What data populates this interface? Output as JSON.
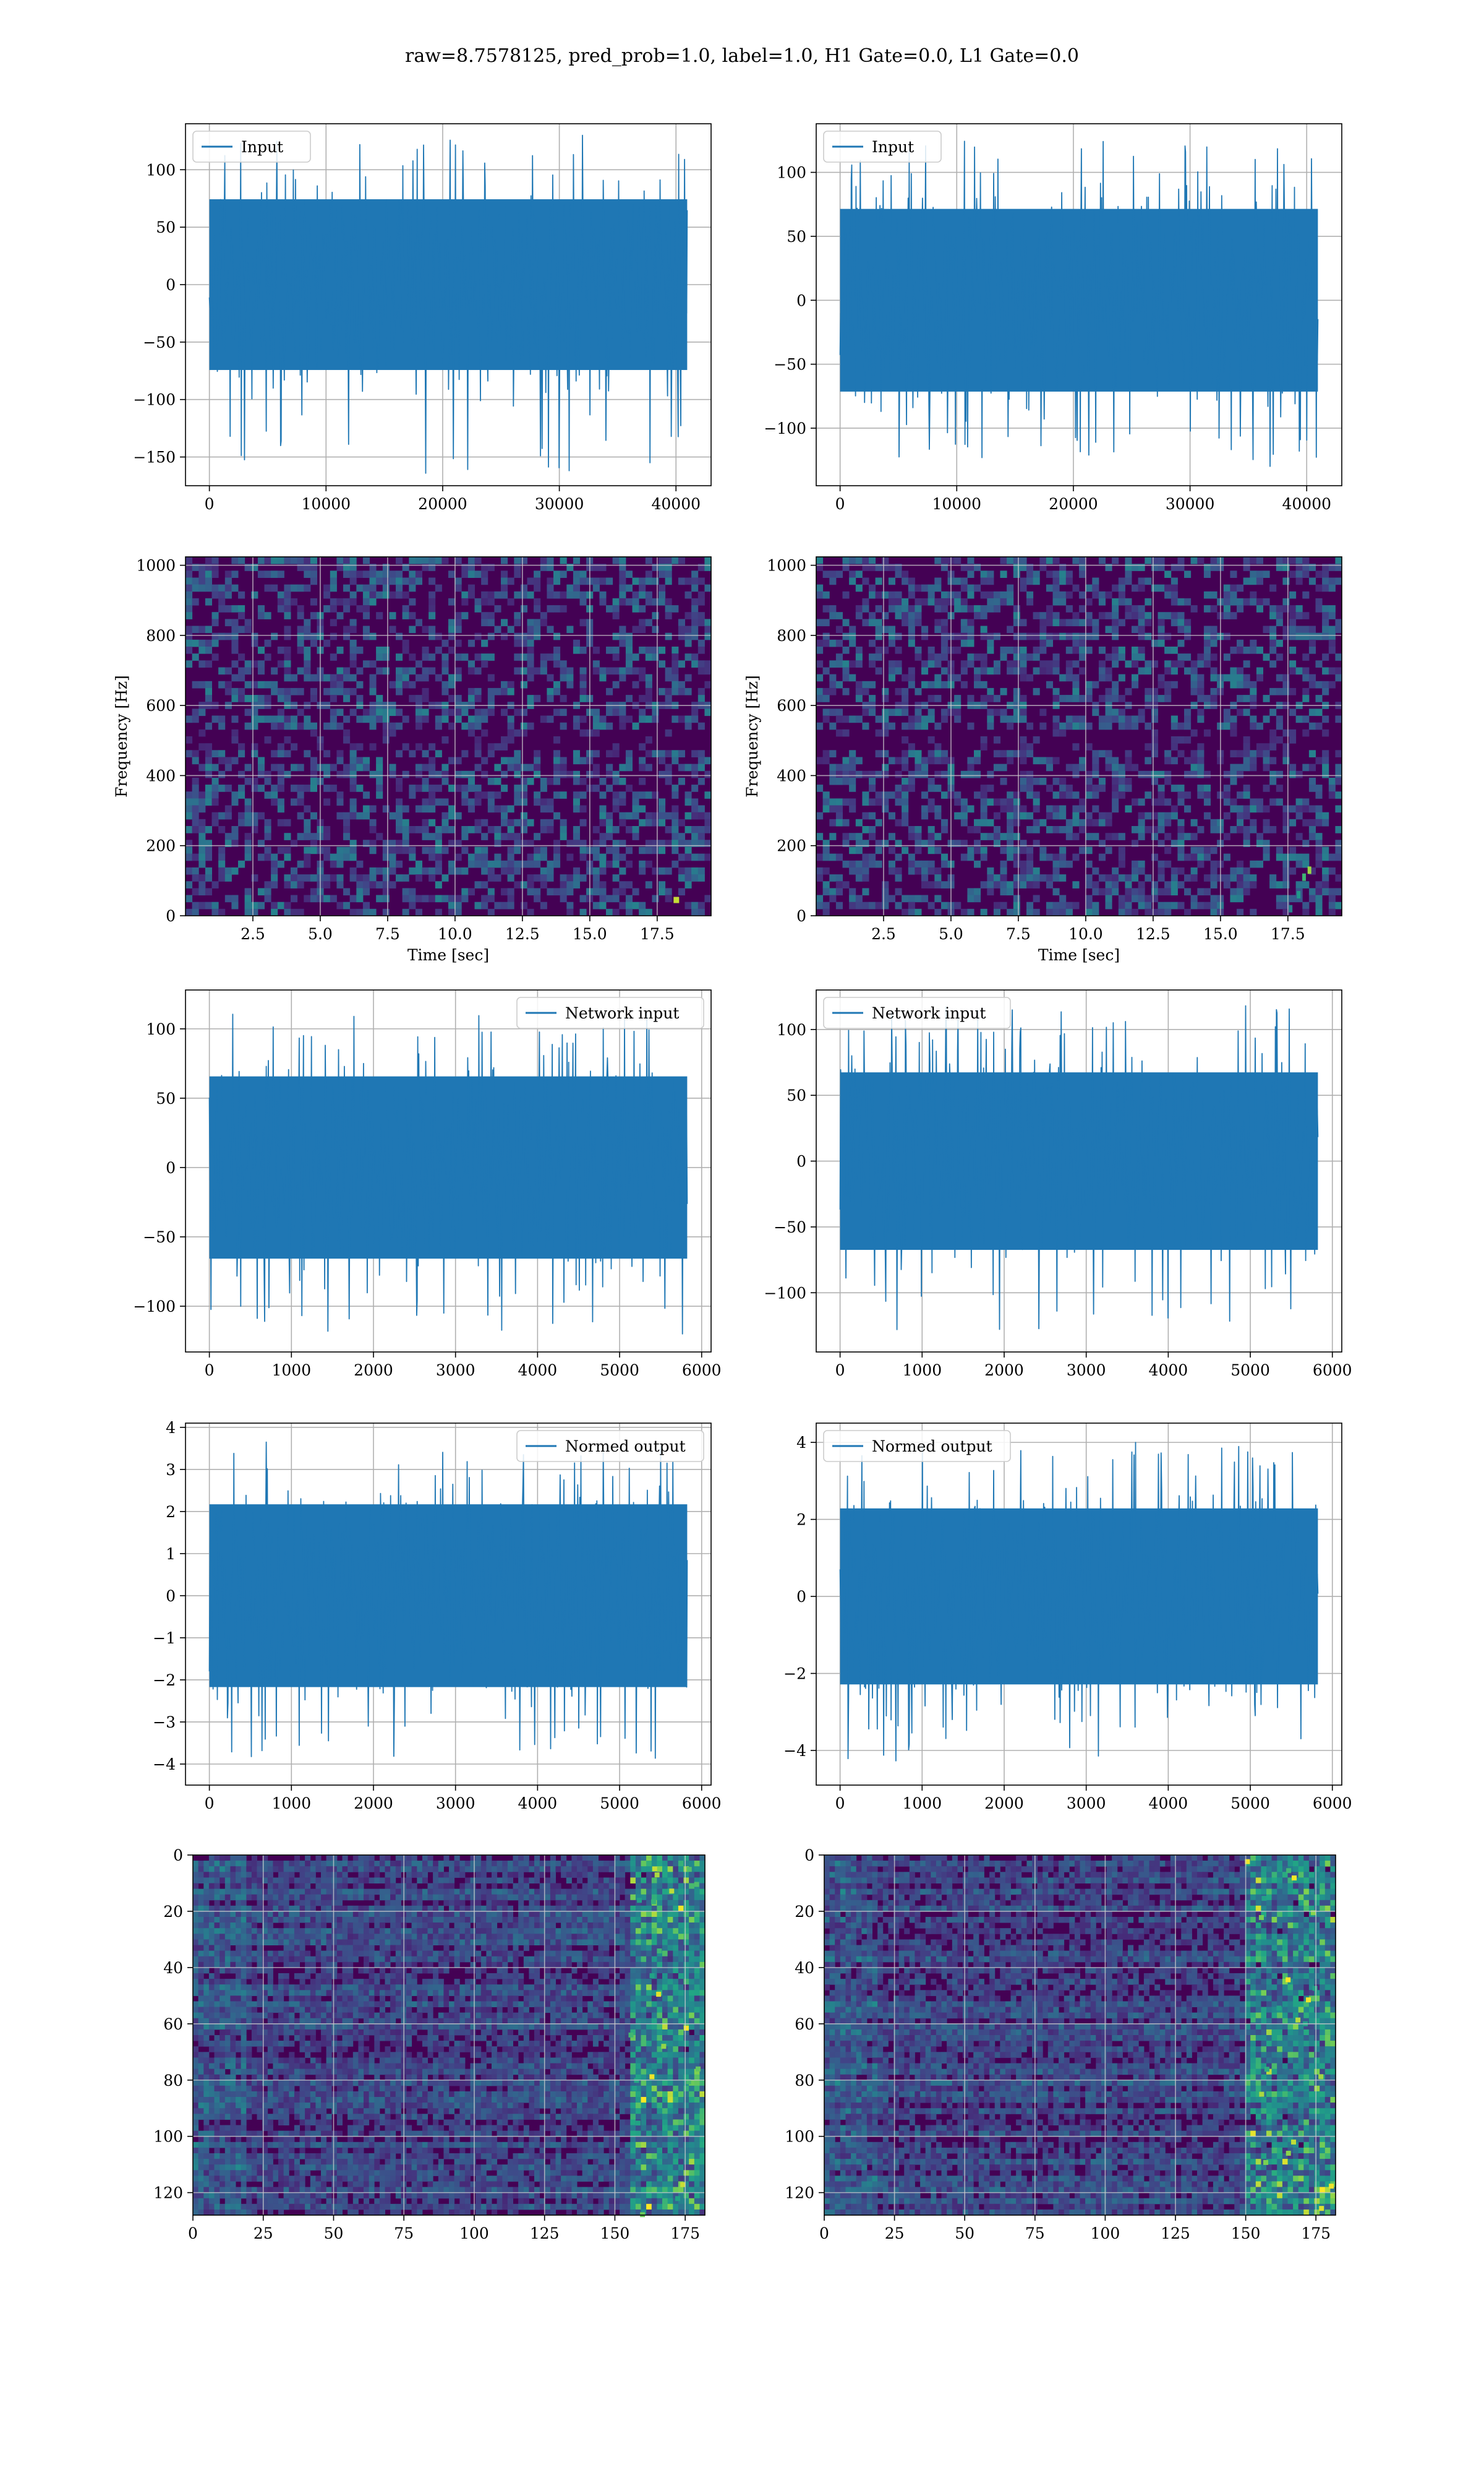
{
  "suptitle": "raw=8.7578125, pred_prob=1.0, label=1.0, H1 Gate=0.0, L1 Gate=0.0",
  "colors": {
    "line": "#1f77b4",
    "viridis_dark": "#440154",
    "grid": "#b0b0b0"
  },
  "chart_data": [
    {
      "id": "input_h1",
      "type": "line",
      "legend": "top-left",
      "series": [
        {
          "name": "Input",
          "color": "#1f77b4",
          "n_points": 40960,
          "x_range": [
            0,
            40960
          ],
          "envelope": [
            -165,
            130
          ]
        }
      ],
      "xlim": [
        -2048,
        43008
      ],
      "ylim": [
        -175,
        140
      ],
      "xticks": [
        0,
        10000,
        20000,
        30000,
        40000
      ],
      "yticks": [
        -150,
        -100,
        -50,
        0,
        50,
        100
      ],
      "xticklabels": [
        "0",
        "10000",
        "20000",
        "30000",
        "40000"
      ],
      "yticklabels": [
        "−150",
        "−100",
        "−50",
        "0",
        "50",
        "100"
      ],
      "grid": true
    },
    {
      "id": "input_l1",
      "type": "line",
      "legend": "top-left",
      "series": [
        {
          "name": "Input",
          "color": "#1f77b4",
          "n_points": 40960,
          "x_range": [
            0,
            40960
          ],
          "envelope": [
            -130,
            125
          ]
        }
      ],
      "xlim": [
        -2048,
        43008
      ],
      "ylim": [
        -145,
        138
      ],
      "xticks": [
        0,
        10000,
        20000,
        30000,
        40000
      ],
      "yticks": [
        -100,
        -50,
        0,
        50,
        100
      ],
      "xticklabels": [
        "0",
        "10000",
        "20000",
        "30000",
        "40000"
      ],
      "yticklabels": [
        "−100",
        "−50",
        "0",
        "50",
        "100"
      ],
      "grid": true
    },
    {
      "id": "spec_h1",
      "type": "heatmap",
      "colormap": "viridis",
      "xlabel": "Time [sec]",
      "ylabel": "Frequency [Hz]",
      "xlim": [
        0,
        19.5
      ],
      "ylim": [
        0,
        1024
      ],
      "xticks": [
        2.5,
        5.0,
        7.5,
        10.0,
        12.5,
        15.0,
        17.5
      ],
      "yticks": [
        0,
        200,
        400,
        600,
        800,
        1000
      ],
      "xticklabels": [
        "2.5",
        "5.0",
        "7.5",
        "10.0",
        "12.5",
        "15.0",
        "17.5"
      ],
      "yticklabels": [
        "0",
        "200",
        "400",
        "600",
        "800",
        "1000"
      ],
      "grid": true,
      "features": [
        {
          "kind": "bright_spot",
          "x": 18.2,
          "y": 45
        }
      ]
    },
    {
      "id": "spec_l1",
      "type": "heatmap",
      "colormap": "viridis",
      "xlabel": "Time [sec]",
      "ylabel": "Frequency [Hz]",
      "xlim": [
        0,
        19.5
      ],
      "ylim": [
        0,
        1024
      ],
      "xticks": [
        2.5,
        5.0,
        7.5,
        10.0,
        12.5,
        15.0,
        17.5
      ],
      "yticks": [
        0,
        200,
        400,
        600,
        800,
        1000
      ],
      "xticklabels": [
        "2.5",
        "5.0",
        "7.5",
        "10.0",
        "12.5",
        "15.0",
        "17.5"
      ],
      "yticklabels": [
        "0",
        "200",
        "400",
        "600",
        "800",
        "1000"
      ],
      "grid": true,
      "features": [
        {
          "kind": "chirp_track",
          "points": [
            [
              17.6,
              20
            ],
            [
              17.9,
              60
            ],
            [
              18.1,
              110
            ],
            [
              18.3,
              130
            ]
          ]
        }
      ]
    },
    {
      "id": "net_h1",
      "type": "line",
      "legend": "top-right",
      "series": [
        {
          "name": "Network input",
          "color": "#1f77b4",
          "n_points": 5824,
          "x_range": [
            0,
            5824
          ],
          "envelope": [
            -120,
            115
          ]
        }
      ],
      "xlim": [
        -291,
        6115
      ],
      "ylim": [
        -133,
        128
      ],
      "xticks": [
        0,
        1000,
        2000,
        3000,
        4000,
        5000,
        6000
      ],
      "yticks": [
        -100,
        -50,
        0,
        50,
        100
      ],
      "xticklabels": [
        "0",
        "1000",
        "2000",
        "3000",
        "4000",
        "5000",
        "6000"
      ],
      "yticklabels": [
        "−100",
        "−50",
        "0",
        "50",
        "100"
      ],
      "grid": true
    },
    {
      "id": "net_l1",
      "type": "line",
      "legend": "top-left",
      "series": [
        {
          "name": "Network input",
          "color": "#1f77b4",
          "n_points": 5824,
          "x_range": [
            0,
            5824
          ],
          "envelope": [
            -130,
            118
          ]
        }
      ],
      "xlim": [
        -291,
        6115
      ],
      "ylim": [
        -145,
        130
      ],
      "xticks": [
        0,
        1000,
        2000,
        3000,
        4000,
        5000,
        6000
      ],
      "yticks": [
        -100,
        -50,
        0,
        50,
        100
      ],
      "xticklabels": [
        "0",
        "1000",
        "2000",
        "3000",
        "4000",
        "5000",
        "6000"
      ],
      "yticklabels": [
        "−100",
        "−50",
        "0",
        "50",
        "100"
      ],
      "grid": true
    },
    {
      "id": "norm_h1",
      "type": "line",
      "legend": "top-right",
      "series": [
        {
          "name": "Normed output",
          "color": "#1f77b4",
          "n_points": 5824,
          "x_range": [
            0,
            5824
          ],
          "envelope": [
            -4.1,
            3.8
          ]
        }
      ],
      "xlim": [
        -291,
        6115
      ],
      "ylim": [
        -4.5,
        4.1
      ],
      "xticks": [
        0,
        1000,
        2000,
        3000,
        4000,
        5000,
        6000
      ],
      "yticks": [
        -4,
        -3,
        -2,
        -1,
        0,
        1,
        2,
        3,
        4
      ],
      "xticklabels": [
        "0",
        "1000",
        "2000",
        "3000",
        "4000",
        "5000",
        "6000"
      ],
      "yticklabels": [
        "−4",
        "−3",
        "−2",
        "−1",
        "0",
        "1",
        "2",
        "3",
        "4"
      ],
      "grid": true
    },
    {
      "id": "norm_l1",
      "type": "line",
      "legend": "top-left",
      "series": [
        {
          "name": "Normed output",
          "color": "#1f77b4",
          "n_points": 5824,
          "x_range": [
            0,
            5824
          ],
          "envelope": [
            -4.3,
            4.0
          ]
        }
      ],
      "xlim": [
        -291,
        6115
      ],
      "ylim": [
        -4.9,
        4.5
      ],
      "xticks": [
        0,
        1000,
        2000,
        3000,
        4000,
        5000,
        6000
      ],
      "yticks": [
        -4,
        -2,
        0,
        2,
        4
      ],
      "xticklabels": [
        "0",
        "1000",
        "2000",
        "3000",
        "4000",
        "5000",
        "6000"
      ],
      "yticklabels": [
        "−4",
        "−2",
        "0",
        "2",
        "4"
      ],
      "grid": true
    },
    {
      "id": "feat_h1",
      "type": "heatmap",
      "colormap": "viridis",
      "xlim": [
        0,
        182
      ],
      "ylim": [
        128,
        0
      ],
      "xticks": [
        0,
        25,
        50,
        75,
        100,
        125,
        150,
        175
      ],
      "yticks": [
        0,
        20,
        40,
        60,
        80,
        100,
        120
      ],
      "xticklabels": [
        "0",
        "25",
        "50",
        "75",
        "100",
        "125",
        "150",
        "175"
      ],
      "yticklabels": [
        "0",
        "20",
        "40",
        "60",
        "80",
        "100",
        "120"
      ],
      "grid": true,
      "features": [
        {
          "kind": "bright_band",
          "x_range": [
            155,
            182
          ]
        }
      ]
    },
    {
      "id": "feat_l1",
      "type": "heatmap",
      "colormap": "viridis",
      "xlim": [
        0,
        182
      ],
      "ylim": [
        128,
        0
      ],
      "xticks": [
        0,
        25,
        50,
        75,
        100,
        125,
        150,
        175
      ],
      "yticks": [
        0,
        20,
        40,
        60,
        80,
        100,
        120
      ],
      "xticklabels": [
        "0",
        "25",
        "50",
        "75",
        "100",
        "125",
        "150",
        "175"
      ],
      "yticklabels": [
        "0",
        "20",
        "40",
        "60",
        "80",
        "100",
        "120"
      ],
      "grid": true,
      "features": [
        {
          "kind": "bright_band",
          "x_range": [
            150,
            182
          ]
        }
      ]
    }
  ]
}
